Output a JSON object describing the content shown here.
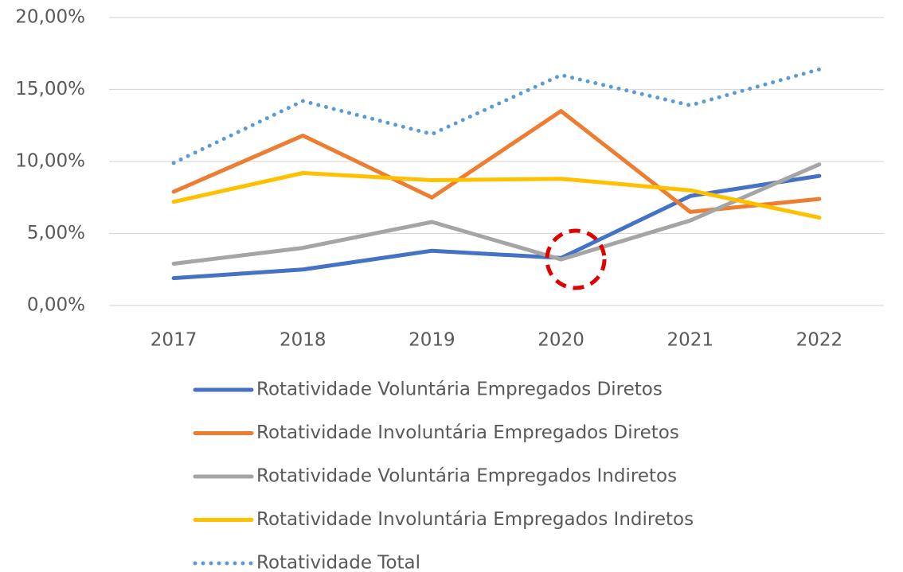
{
  "chart_data": {
    "type": "line",
    "categories": [
      "2017",
      "2018",
      "2019",
      "2020",
      "2021",
      "2022"
    ],
    "series": [
      {
        "name": "Rotatividade Voluntária Empregados Diretos",
        "color": "#4472c4",
        "values": [
          1.9,
          2.5,
          3.8,
          3.3,
          7.6,
          9.0
        ]
      },
      {
        "name": "Rotatividade Involuntária Empregados Diretos",
        "color": "#ed7d31",
        "values": [
          7.9,
          11.8,
          7.5,
          13.5,
          6.5,
          7.4
        ]
      },
      {
        "name": "Rotatividade Voluntária Empregados Indiretos",
        "color": "#a5a5a5",
        "values": [
          2.9,
          4.0,
          5.8,
          3.2,
          5.9,
          9.8
        ]
      },
      {
        "name": "Rotatividade Involuntária Empregados Indiretos",
        "color": "#ffc000",
        "values": [
          7.2,
          9.2,
          8.7,
          8.8,
          8.0,
          6.1
        ]
      },
      {
        "name": "Rotatividade Total",
        "color": "#5b9bd5",
        "line_style": "dotted",
        "values": [
          9.9,
          14.2,
          11.9,
          16.0,
          13.9,
          16.4
        ]
      }
    ],
    "ylim": [
      0,
      20
    ],
    "yticks": [
      {
        "value": 0,
        "label": "0,00%"
      },
      {
        "value": 5,
        "label": "5,00%"
      },
      {
        "value": 10,
        "label": "10,00%"
      },
      {
        "value": 15,
        "label": "15,00%"
      },
      {
        "value": 20,
        "label": "20,00%"
      }
    ],
    "grid": true,
    "legend": "bottom"
  }
}
